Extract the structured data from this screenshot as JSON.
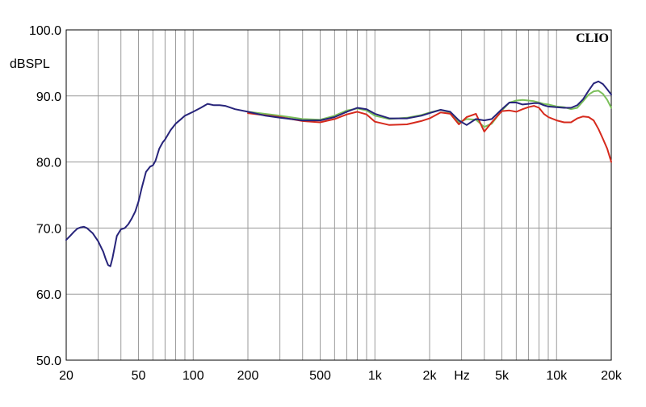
{
  "chart_data": {
    "type": "line",
    "brand": "CLIO",
    "ylabel": "dBSPL",
    "x_unit_label": "Hz",
    "x_scale": "log",
    "xlim": [
      20,
      20000
    ],
    "ylim": [
      50,
      100
    ],
    "grid": true,
    "x_ticks": [
      {
        "value": 20,
        "label": "20"
      },
      {
        "value": 50,
        "label": "50"
      },
      {
        "value": 100,
        "label": "100"
      },
      {
        "value": 200,
        "label": "200"
      },
      {
        "value": 500,
        "label": "500"
      },
      {
        "value": 1000,
        "label": "1k"
      },
      {
        "value": 2000,
        "label": "2k"
      },
      {
        "value": 5000,
        "label": "5k"
      },
      {
        "value": 10000,
        "label": "10k"
      },
      {
        "value": 20000,
        "label": "20k"
      }
    ],
    "y_ticks": [
      {
        "value": 100,
        "label": "100.0"
      },
      {
        "value": 90,
        "label": "90.0"
      },
      {
        "value": 80,
        "label": "80.0"
      },
      {
        "value": 70,
        "label": "70.0"
      },
      {
        "value": 60,
        "label": "60.0"
      },
      {
        "value": 50,
        "label": "50.0"
      }
    ],
    "series": [
      {
        "color": "#7bbf5a",
        "x": [
          200,
          300,
          400,
          500,
          600,
          700,
          800,
          900,
          1000,
          1200,
          1500,
          1800,
          2000,
          2300,
          2600,
          2900,
          3200,
          3600,
          4000,
          4400,
          5000,
          5500,
          6000,
          6500,
          7000,
          7500,
          8000,
          8500,
          9000,
          10000,
          11000,
          12000,
          13000,
          14000,
          15000,
          16000,
          17000,
          18000,
          19000,
          20000
        ],
        "y": [
          87.6,
          87.0,
          86.5,
          86.4,
          87.0,
          87.8,
          88.1,
          87.8,
          87.0,
          86.5,
          86.7,
          87.1,
          87.5,
          87.9,
          87.5,
          86.0,
          86.5,
          86.4,
          85.3,
          85.8,
          87.8,
          89.0,
          89.3,
          89.4,
          89.3,
          89.2,
          89.0,
          88.8,
          88.7,
          88.4,
          88.3,
          88.0,
          88.2,
          89.2,
          90.2,
          90.7,
          90.8,
          90.3,
          89.4,
          88.2
        ]
      },
      {
        "color": "#d62a1d",
        "x": [
          200,
          300,
          400,
          500,
          600,
          700,
          800,
          900,
          1000,
          1200,
          1500,
          1800,
          2000,
          2300,
          2600,
          2900,
          3200,
          3600,
          4000,
          4400,
          5000,
          5500,
          6000,
          6500,
          7000,
          7500,
          8000,
          8500,
          9000,
          10000,
          11000,
          12000,
          13000,
          14000,
          15000,
          16000,
          17000,
          18000,
          19000,
          20000
        ],
        "y": [
          87.4,
          86.8,
          86.2,
          86.0,
          86.5,
          87.2,
          87.6,
          87.2,
          86.1,
          85.6,
          85.7,
          86.2,
          86.6,
          87.5,
          87.3,
          85.7,
          86.8,
          87.3,
          84.6,
          86.0,
          87.7,
          87.8,
          87.6,
          88.0,
          88.3,
          88.5,
          88.2,
          87.3,
          86.8,
          86.3,
          86.0,
          86.0,
          86.6,
          86.9,
          86.8,
          86.3,
          85.0,
          83.5,
          82.0,
          80.0
        ]
      },
      {
        "color": "#27247a",
        "x": [
          20,
          21,
          22,
          23,
          24,
          25,
          26,
          27,
          28,
          30,
          32,
          33,
          34,
          35,
          36,
          38,
          40,
          42,
          44,
          46,
          48,
          50,
          52,
          55,
          58,
          60,
          62,
          65,
          68,
          70,
          75,
          80,
          85,
          90,
          100,
          110,
          120,
          130,
          140,
          150,
          170,
          200,
          250,
          300,
          400,
          500,
          600,
          700,
          800,
          900,
          1000,
          1200,
          1500,
          1800,
          2000,
          2300,
          2600,
          2900,
          3200,
          3600,
          4000,
          4400,
          5000,
          5500,
          6000,
          6500,
          7000,
          7500,
          8000,
          8500,
          9000,
          10000,
          11000,
          12000,
          13000,
          14000,
          15000,
          16000,
          17000,
          18000,
          19000,
          20000
        ],
        "y": [
          68.2,
          68.8,
          69.4,
          69.9,
          70.1,
          70.2,
          70.0,
          69.6,
          69.2,
          68.0,
          66.4,
          65.3,
          64.4,
          64.2,
          65.5,
          68.8,
          69.8,
          70.0,
          70.6,
          71.5,
          72.5,
          74.0,
          76.0,
          78.5,
          79.3,
          79.5,
          80.2,
          82.0,
          83.0,
          83.4,
          84.8,
          85.8,
          86.4,
          87.0,
          87.6,
          88.2,
          88.8,
          88.6,
          88.6,
          88.5,
          88.0,
          87.6,
          87.0,
          86.7,
          86.3,
          86.3,
          86.8,
          87.6,
          88.2,
          88.0,
          87.3,
          86.6,
          86.6,
          87.0,
          87.4,
          87.9,
          87.6,
          86.3,
          85.6,
          86.5,
          86.3,
          86.5,
          88.0,
          89.0,
          89.0,
          88.7,
          88.8,
          88.9,
          88.9,
          88.6,
          88.4,
          88.3,
          88.2,
          88.2,
          88.6,
          89.5,
          90.8,
          91.9,
          92.2,
          91.8,
          91.0,
          90.2
        ]
      }
    ]
  }
}
